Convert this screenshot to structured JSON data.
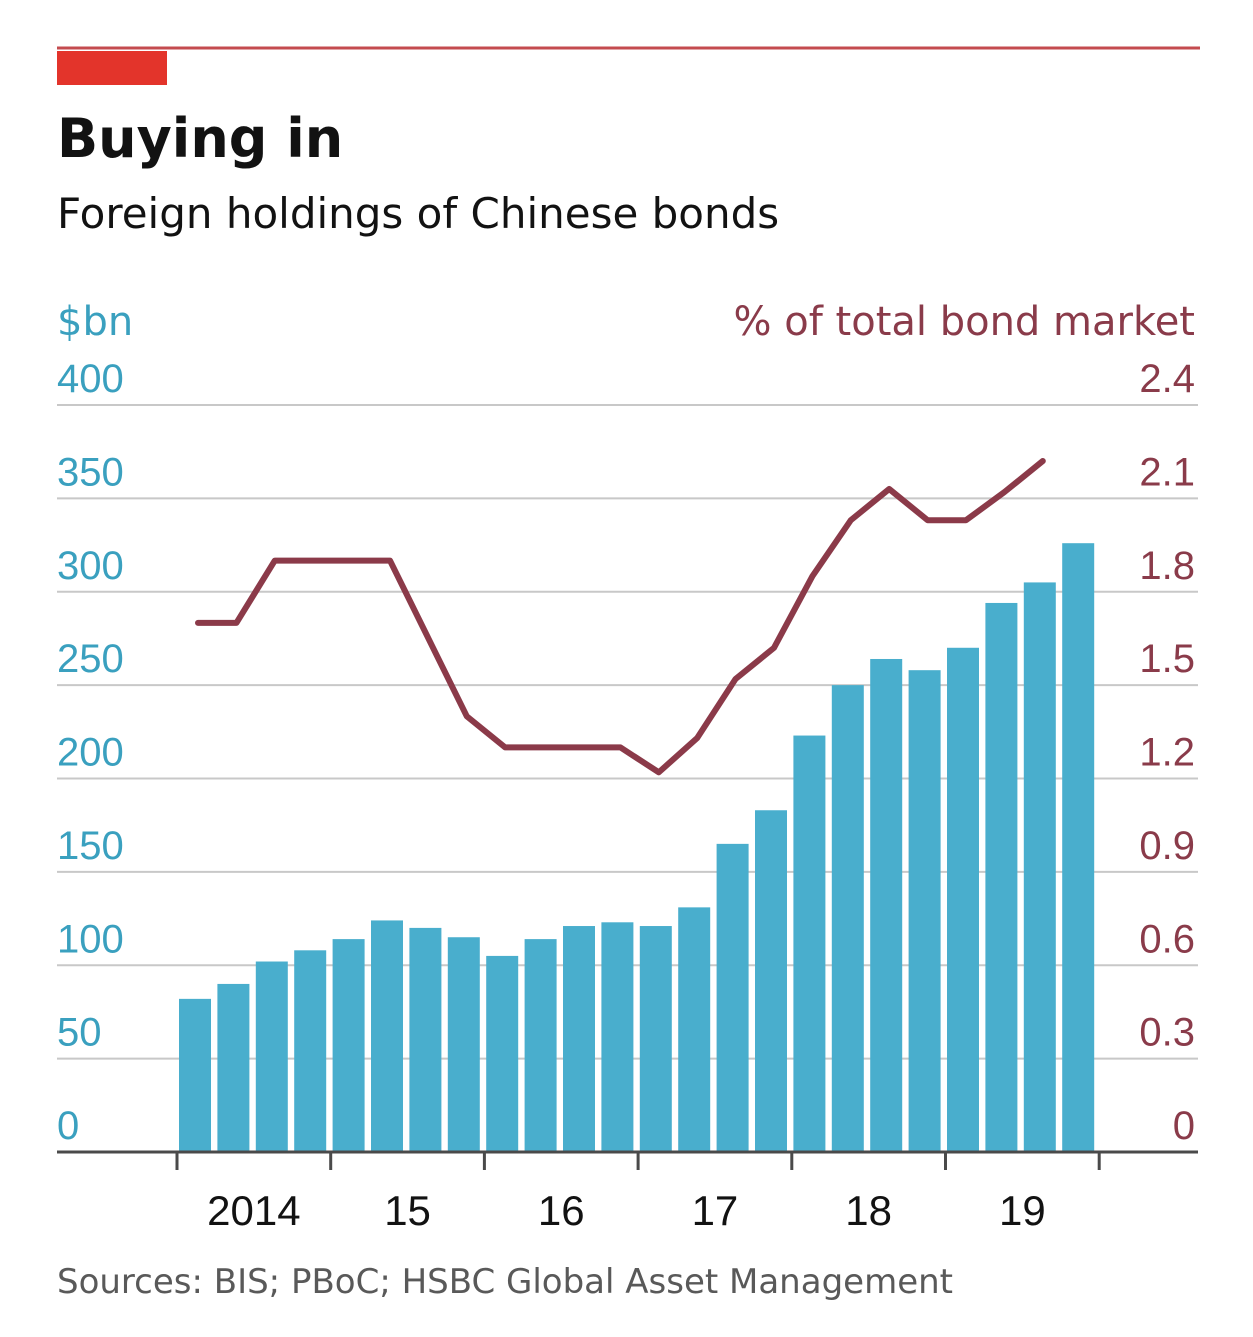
{
  "colors": {
    "brand_red": "#e3342b",
    "rule_red": "#c44b4f",
    "bar": "#49aecd",
    "line": "#8b3a49",
    "left_axis": "#3aa0bf",
    "right_axis": "#8a3b4a",
    "grid": "#c8c8c8",
    "text": "#121212",
    "source": "#595959"
  },
  "chart_data": {
    "type": "bar",
    "title": "Buying in",
    "subtitle": "Foreign holdings of Chinese bonds",
    "ylabel_left": "$bn",
    "ylabel_right": "% of total bond market",
    "ylim_left": [
      0,
      400
    ],
    "ylim_right": [
      0,
      2.4
    ],
    "yticks_left": [
      "0",
      "50",
      "100",
      "150",
      "200",
      "250",
      "300",
      "350",
      "400"
    ],
    "yticks_right": [
      "0",
      "0.3",
      "0.6",
      "0.9",
      "1.2",
      "1.5",
      "1.8",
      "2.1",
      "2.4"
    ],
    "xticks": [
      "2014",
      "15",
      "16",
      "17",
      "18",
      "19"
    ],
    "grid": true,
    "series": [
      {
        "type": "bar",
        "axis": "left",
        "values": [
          82,
          90,
          102,
          108,
          114,
          124,
          120,
          115,
          105,
          114,
          121,
          123,
          121,
          131,
          165,
          183,
          223,
          250,
          264,
          258,
          270,
          294,
          305,
          326
        ]
      },
      {
        "type": "line",
        "axis": "right",
        "values": [
          1.7,
          1.7,
          1.9,
          1.9,
          1.9,
          1.9,
          1.65,
          1.4,
          1.3,
          1.3,
          1.3,
          1.3,
          1.22,
          1.33,
          1.52,
          1.62,
          1.85,
          2.03,
          2.13,
          2.03,
          2.03,
          2.12,
          2.22
        ]
      }
    ],
    "source": "Sources: BIS; PBoC; HSBC Global Asset Management"
  }
}
